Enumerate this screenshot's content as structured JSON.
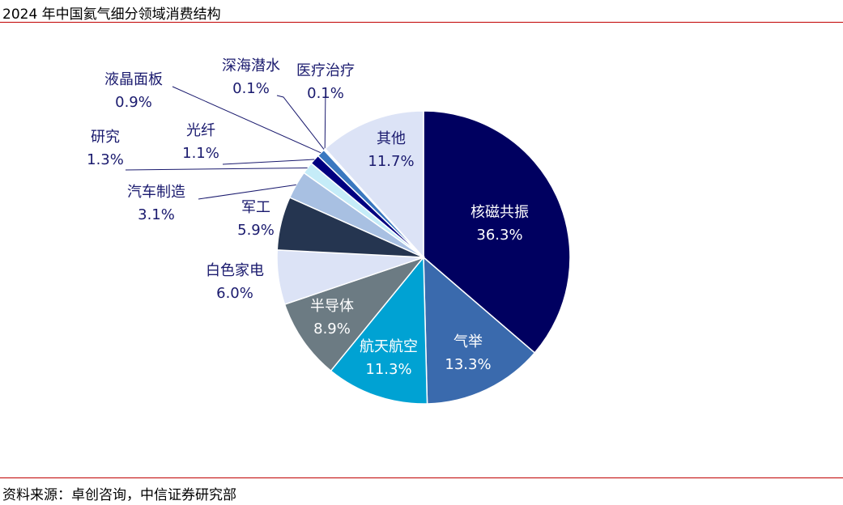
{
  "title": "2024 年中国氦气细分领域消费结构",
  "source": "资料来源：卓创咨询，中信证券研究部",
  "chart_data": {
    "type": "pie",
    "title": "2024 年中国氦气细分领域消费结构",
    "start": "top",
    "direction": "clockwise",
    "slices": [
      {
        "name": "核磁共振",
        "value": 36.3,
        "label": "36.3%",
        "color": "#000060",
        "text_color": "#ffffff"
      },
      {
        "name": "气举",
        "value": 13.3,
        "label": "13.3%",
        "color": "#3a6aad",
        "text_color": "#ffffff"
      },
      {
        "name": "航天航空",
        "value": 11.3,
        "label": "11.3%",
        "color": "#00a2d3",
        "text_color": "#ffffff"
      },
      {
        "name": "半导体",
        "value": 8.9,
        "label": "8.9%",
        "color": "#6c7b83",
        "text_color": "#ffffff"
      },
      {
        "name": "白色家电",
        "value": 6.0,
        "label": "6.0%",
        "color": "#dce3f6",
        "text_color": "#1a1a6e"
      },
      {
        "name": "军工",
        "value": 5.9,
        "label": "5.9%",
        "color": "#253550",
        "text_color": "#1a1a6e"
      },
      {
        "name": "汽车制造",
        "value": 3.1,
        "label": "3.1%",
        "color": "#a8c0e2",
        "text_color": "#1a1a6e"
      },
      {
        "name": "研究",
        "value": 1.3,
        "label": "1.3%",
        "color": "#c5ecf8",
        "text_color": "#1a1a6e"
      },
      {
        "name": "光纤",
        "value": 1.1,
        "label": "1.1%",
        "color": "#000080",
        "text_color": "#1a1a6e"
      },
      {
        "name": "液晶面板",
        "value": 0.9,
        "label": "0.9%",
        "color": "#3a78c0",
        "text_color": "#1a1a6e"
      },
      {
        "name": "深海潜水",
        "value": 0.1,
        "label": "0.1%",
        "color": "#000060",
        "text_color": "#1a1a6e"
      },
      {
        "name": "医疗治疗",
        "value": 0.1,
        "label": "0.1%",
        "color": "#3a6aad",
        "text_color": "#1a1a6e"
      },
      {
        "name": "其他",
        "value": 11.7,
        "label": "11.7%",
        "color": "#dce3f6",
        "text_color": "#1a1a6e"
      }
    ]
  }
}
